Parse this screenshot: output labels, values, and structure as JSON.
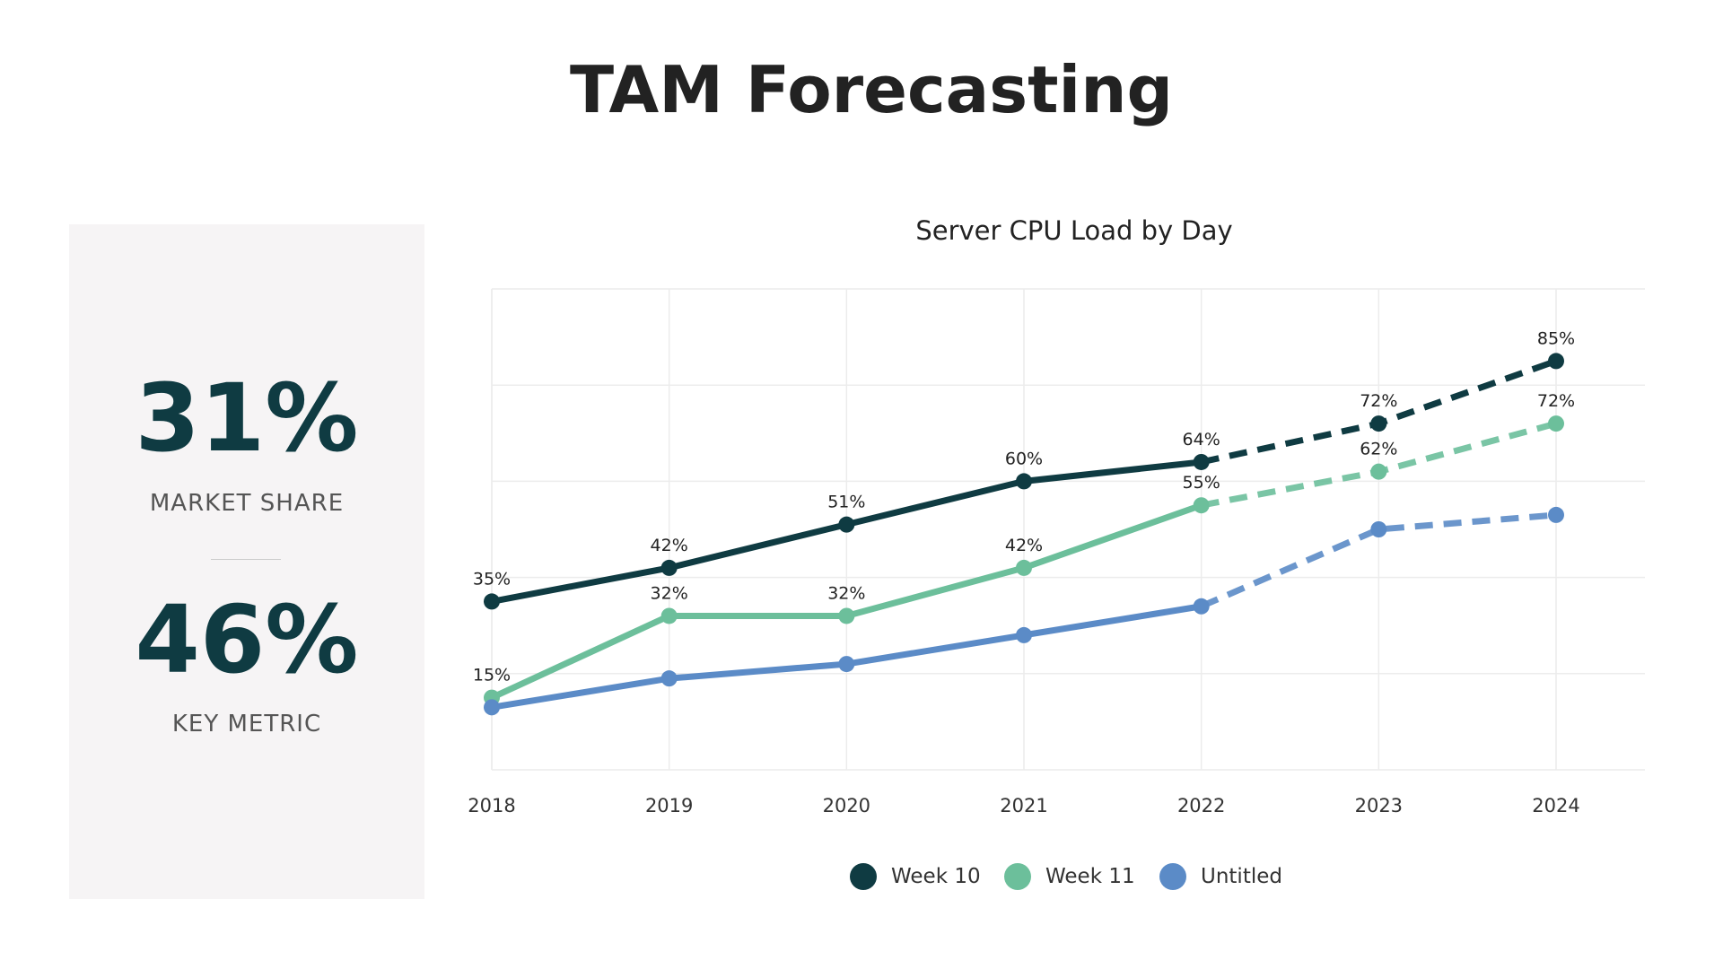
{
  "title": "TAM Forecasting",
  "metrics": [
    {
      "value": "31%",
      "label": "MARKET SHARE"
    },
    {
      "value": "46%",
      "label": "KEY METRIC"
    }
  ],
  "chart_data": {
    "type": "line",
    "title": "Server CPU Load by Day",
    "xlabel": "",
    "ylabel": "",
    "categories": [
      "2018",
      "2019",
      "2020",
      "2021",
      "2022",
      "2023",
      "2024"
    ],
    "ylim": [
      0,
      100
    ],
    "grid": true,
    "legend": "bottom",
    "forecast_from": "2022",
    "series": [
      {
        "name": "Week 10",
        "color": "#0f3b42",
        "values": [
          35,
          42,
          51,
          60,
          64,
          72,
          85
        ],
        "labels": [
          "35%",
          "42%",
          "51%",
          "60%",
          "64%",
          "72%",
          "85%"
        ]
      },
      {
        "name": "Week 11",
        "color": "#6cbf9b",
        "values": [
          15,
          32,
          32,
          42,
          55,
          62,
          72
        ],
        "labels": [
          "15%",
          "32%",
          "32%",
          "42%",
          "55%",
          "62%",
          "72%"
        ]
      },
      {
        "name": "Untitled",
        "color": "#5b8bc7",
        "values": [
          13,
          19,
          22,
          28,
          34,
          50,
          53
        ],
        "labels": []
      }
    ]
  }
}
